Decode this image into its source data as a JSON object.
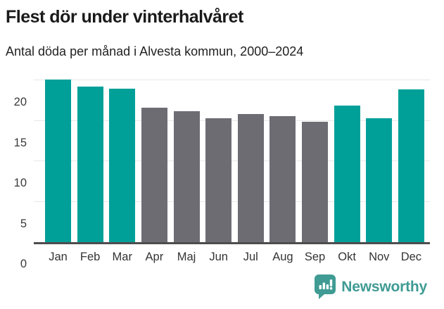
{
  "header": {
    "title": "Flest dör under vinterhalvåret",
    "subtitle": "Antal döda per månad i Alvesta kommun, 2000–2024"
  },
  "chart_data": {
    "type": "bar",
    "title": "Flest dör under vinterhalvåret",
    "subtitle": "Antal döda per månad i Alvesta kommun, 2000–2024",
    "categories": [
      "Jan",
      "Feb",
      "Mar",
      "Apr",
      "Maj",
      "Jun",
      "Jul",
      "Aug",
      "Sep",
      "Okt",
      "Nov",
      "Dec"
    ],
    "values": [
      20.1,
      19.2,
      19.0,
      16.6,
      16.2,
      15.3,
      15.8,
      15.6,
      14.9,
      16.9,
      15.3,
      18.9
    ],
    "winter_mask": [
      true,
      true,
      true,
      false,
      false,
      false,
      false,
      false,
      false,
      true,
      true,
      true
    ],
    "colors": {
      "winter_bar": "#00a099",
      "summer_bar": "#6e6c73",
      "gridline": "#e7e7e7",
      "axis_line": "#4d4d4d"
    },
    "xlabel": "",
    "ylabel": "",
    "yticks": [
      0,
      5,
      10,
      15,
      20
    ],
    "ylim": [
      0,
      21.3
    ],
    "grid": true,
    "legend": "none"
  },
  "footer": {
    "brand": "Newsworthy",
    "brand_color": "#3f9b94",
    "logo_icon": "bar-chart-speech-bubble-icon"
  }
}
